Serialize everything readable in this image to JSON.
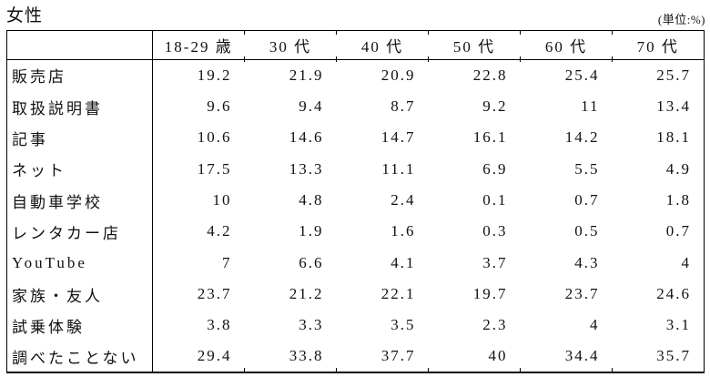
{
  "page": {
    "title": "女性",
    "unit_label": "(単位:%)"
  },
  "colors": {
    "background": "#ffffff",
    "text": "#111111",
    "border": "#000000"
  },
  "table": {
    "columns": [
      "18-29 歳",
      "30 代",
      "40 代",
      "50 代",
      "60 代",
      "70 代"
    ],
    "rows": [
      {
        "label": "販売店",
        "values": [
          "19.2",
          "21.9",
          "20.9",
          "22.8",
          "25.4",
          "25.7"
        ]
      },
      {
        "label": "取扱説明書",
        "values": [
          "9.6",
          "9.4",
          "8.7",
          "9.2",
          "11",
          "13.4"
        ]
      },
      {
        "label": "記事",
        "values": [
          "10.6",
          "14.6",
          "14.7",
          "16.1",
          "14.2",
          "18.1"
        ]
      },
      {
        "label": "ネット",
        "values": [
          "17.5",
          "13.3",
          "11.1",
          "6.9",
          "5.5",
          "4.9"
        ]
      },
      {
        "label": "自動車学校",
        "values": [
          "10",
          "4.8",
          "2.4",
          "0.1",
          "0.7",
          "1.8"
        ]
      },
      {
        "label": "レンタカー店",
        "values": [
          "4.2",
          "1.9",
          "1.6",
          "0.3",
          "0.5",
          "0.7"
        ]
      },
      {
        "label": "YouTube",
        "values": [
          "7",
          "6.6",
          "4.1",
          "3.7",
          "4.3",
          "4"
        ]
      },
      {
        "label": "家族・友人",
        "values": [
          "23.7",
          "21.2",
          "22.1",
          "19.7",
          "23.7",
          "24.6"
        ]
      },
      {
        "label": "試乗体験",
        "values": [
          "3.8",
          "3.3",
          "3.5",
          "2.3",
          "4",
          "3.1"
        ]
      },
      {
        "label": "調べたことない",
        "values": [
          "29.4",
          "33.8",
          "37.7",
          "40",
          "34.4",
          "35.7"
        ]
      }
    ]
  }
}
